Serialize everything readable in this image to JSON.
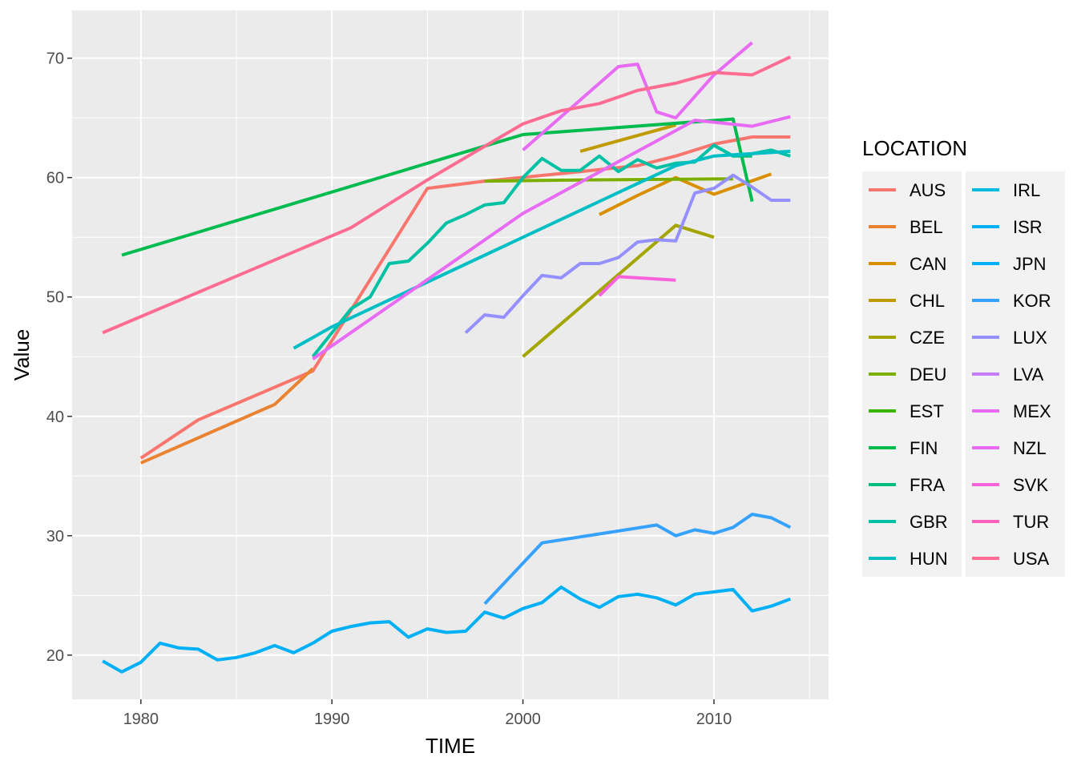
{
  "chart_data": {
    "type": "line",
    "title": "",
    "xlabel": "TIME",
    "ylabel": "Value",
    "xlim": [
      1976.4,
      2016
    ],
    "ylim": [
      16.3,
      74
    ],
    "x_ticks": [
      1980,
      1990,
      2000,
      2010
    ],
    "x_tick_labels": [
      "1980",
      "1990",
      "2000",
      "2010"
    ],
    "x_minor_ticks": [
      1985,
      1995,
      2005,
      2015
    ],
    "y_ticks": [
      20,
      30,
      40,
      50,
      60,
      70
    ],
    "y_tick_labels": [
      "20",
      "30",
      "40",
      "50",
      "60",
      "70"
    ],
    "y_minor_ticks": [
      25,
      35,
      45,
      55,
      65
    ],
    "grid": true,
    "legend_title": "LOCATION",
    "legend_placement": "right",
    "panel_background": "#ebebeb",
    "grid_color": "#ffffff",
    "series": [
      {
        "name": "AUS",
        "color": "#F8766D",
        "points": [
          [
            1980,
            36.5
          ],
          [
            1983,
            39.7
          ],
          [
            1989,
            43.8
          ],
          [
            1995,
            59.1
          ],
          [
            1998,
            59.7
          ],
          [
            2003,
            60.5
          ],
          [
            2006,
            61
          ],
          [
            2008,
            61.8
          ],
          [
            2010,
            62.8
          ],
          [
            2012,
            63.4
          ],
          [
            2014,
            63.4
          ]
        ]
      },
      {
        "name": "BEL",
        "color": "#EA8331",
        "points": [
          [
            1980,
            36.1
          ],
          [
            1987,
            41
          ],
          [
            1989,
            44
          ]
        ]
      },
      {
        "name": "CAN",
        "color": "#D89000",
        "points": [
          [
            2004,
            56.9
          ],
          [
            2006,
            58.5
          ],
          [
            2008,
            60
          ],
          [
            2010,
            58.6
          ],
          [
            2013,
            60.3
          ]
        ]
      },
      {
        "name": "CHL",
        "color": "#C09B00",
        "points": [
          [
            2003,
            62.2
          ],
          [
            2008,
            64.4
          ]
        ]
      },
      {
        "name": "CZE",
        "color": "#A3A500",
        "points": [
          [
            2000,
            45
          ],
          [
            2008,
            56
          ],
          [
            2010,
            55
          ]
        ]
      },
      {
        "name": "DEU",
        "color": "#7CAE00",
        "points": [
          [
            1998,
            59.7
          ],
          [
            2003,
            59.8
          ],
          [
            2011,
            59.9
          ]
        ]
      },
      {
        "name": "EST",
        "color": "#39B600",
        "points": []
      },
      {
        "name": "FIN",
        "color": "#00BB4E",
        "points": [
          [
            1979,
            53.5
          ],
          [
            2000,
            63.6
          ],
          [
            2011,
            64.9
          ],
          [
            2012,
            58
          ]
        ]
      },
      {
        "name": "FRA",
        "color": "#00BF7D",
        "points": [
          [
            2010,
            62.7
          ],
          [
            2011,
            61.8
          ],
          [
            2012,
            61.8
          ]
        ]
      },
      {
        "name": "GBR",
        "color": "#00C1A3",
        "points": [
          [
            1989,
            45
          ],
          [
            1991,
            49
          ],
          [
            1992,
            50
          ],
          [
            1993,
            52.8
          ],
          [
            1994,
            53
          ],
          [
            1995,
            54.5
          ],
          [
            1996,
            56.2
          ],
          [
            1997,
            56.9
          ],
          [
            1998,
            57.7
          ],
          [
            1999,
            57.9
          ],
          [
            2000,
            60
          ],
          [
            2001,
            61.6
          ],
          [
            2002,
            60.6
          ],
          [
            2003,
            60.6
          ],
          [
            2004,
            61.8
          ],
          [
            2005,
            60.5
          ],
          [
            2006,
            61.5
          ],
          [
            2007,
            60.8
          ],
          [
            2008,
            61.2
          ],
          [
            2009,
            61.3
          ],
          [
            2010,
            62.7
          ],
          [
            2011,
            61.8
          ],
          [
            2012,
            62
          ],
          [
            2013,
            62.3
          ],
          [
            2014,
            61.8
          ]
        ]
      },
      {
        "name": "HUN",
        "color": "#00BFC4",
        "points": [
          [
            1988,
            45.7
          ],
          [
            1990,
            47.5
          ],
          [
            2000,
            55
          ],
          [
            2004,
            58
          ],
          [
            2008,
            61
          ],
          [
            2010,
            61.8
          ],
          [
            2014,
            62.2
          ]
        ]
      },
      {
        "name": "IRL",
        "color": "#00BAE0",
        "points": []
      },
      {
        "name": "ISR",
        "color": "#00B0F6",
        "points": []
      },
      {
        "name": "JPN",
        "color": "#00B0F6",
        "points": [
          [
            1978,
            19.5
          ],
          [
            1979,
            18.6
          ],
          [
            1980,
            19.4
          ],
          [
            1981,
            21
          ],
          [
            1982,
            20.6
          ],
          [
            1983,
            20.5
          ],
          [
            1984,
            19.6
          ],
          [
            1985,
            19.8
          ],
          [
            1986,
            20.2
          ],
          [
            1987,
            20.8
          ],
          [
            1988,
            20.2
          ],
          [
            1989,
            21
          ],
          [
            1990,
            22
          ],
          [
            1991,
            22.4
          ],
          [
            1992,
            22.7
          ],
          [
            1993,
            22.8
          ],
          [
            1994,
            21.5
          ],
          [
            1995,
            22.2
          ],
          [
            1996,
            21.9
          ],
          [
            1997,
            22
          ],
          [
            1998,
            23.6
          ],
          [
            1999,
            23.1
          ],
          [
            2000,
            23.9
          ],
          [
            2001,
            24.4
          ],
          [
            2002,
            25.7
          ],
          [
            2003,
            24.7
          ],
          [
            2004,
            24
          ],
          [
            2005,
            24.9
          ],
          [
            2006,
            25.1
          ],
          [
            2007,
            24.8
          ],
          [
            2008,
            24.2
          ],
          [
            2009,
            25.1
          ],
          [
            2010,
            25.3
          ],
          [
            2011,
            25.5
          ],
          [
            2012,
            23.7
          ],
          [
            2013,
            24.1
          ],
          [
            2014,
            24.7
          ]
        ]
      },
      {
        "name": "KOR",
        "color": "#35A2FF",
        "points": [
          [
            1998,
            24.3
          ],
          [
            2001,
            29.4
          ],
          [
            2007,
            30.9
          ],
          [
            2008,
            30
          ],
          [
            2009,
            30.5
          ],
          [
            2010,
            30.2
          ],
          [
            2011,
            30.7
          ],
          [
            2012,
            31.8
          ],
          [
            2013,
            31.5
          ],
          [
            2014,
            30.7
          ]
        ]
      },
      {
        "name": "LUX",
        "color": "#9590FF",
        "points": [
          [
            1997,
            47
          ],
          [
            1998,
            48.5
          ],
          [
            1999,
            48.3
          ],
          [
            2000,
            50.1
          ],
          [
            2001,
            51.8
          ],
          [
            2002,
            51.6
          ],
          [
            2003,
            52.8
          ],
          [
            2004,
            52.8
          ],
          [
            2005,
            53.3
          ],
          [
            2006,
            54.6
          ],
          [
            2007,
            54.8
          ],
          [
            2008,
            54.7
          ],
          [
            2009,
            58.7
          ],
          [
            2010,
            59.1
          ],
          [
            2011,
            60.2
          ],
          [
            2012,
            59.2
          ],
          [
            2013,
            58.1
          ],
          [
            2014,
            58.1
          ]
        ]
      },
      {
        "name": "LVA",
        "color": "#C77CFF",
        "points": []
      },
      {
        "name": "MEX",
        "color": "#E76BF3",
        "points": [
          [
            1989,
            44.8
          ],
          [
            2000,
            57
          ],
          [
            2009,
            64.8
          ],
          [
            2012,
            64.3
          ],
          [
            2014,
            65.1
          ]
        ]
      },
      {
        "name": "NZL",
        "color": "#E76BF3",
        "points": [
          [
            2000,
            62.3
          ],
          [
            2005,
            69.3
          ],
          [
            2006,
            69.5
          ],
          [
            2007,
            65.5
          ],
          [
            2008,
            65
          ],
          [
            2010,
            68.6
          ],
          [
            2012,
            71.3
          ]
        ]
      },
      {
        "name": "SVK",
        "color": "#FA62DB",
        "points": [
          [
            2004,
            50.1
          ],
          [
            2005,
            51.7
          ],
          [
            2008,
            51.4
          ]
        ]
      },
      {
        "name": "TUR",
        "color": "#FF62BC",
        "points": []
      },
      {
        "name": "USA",
        "color": "#FF6C91",
        "points": [
          [
            1978,
            47
          ],
          [
            1991,
            55.8
          ],
          [
            1995,
            59.8
          ],
          [
            2000,
            64.5
          ],
          [
            2002,
            65.6
          ],
          [
            2004,
            66.2
          ],
          [
            2006,
            67.3
          ],
          [
            2008,
            67.9
          ],
          [
            2010,
            68.8
          ],
          [
            2012,
            68.6
          ],
          [
            2014,
            70.1
          ]
        ]
      }
    ]
  }
}
